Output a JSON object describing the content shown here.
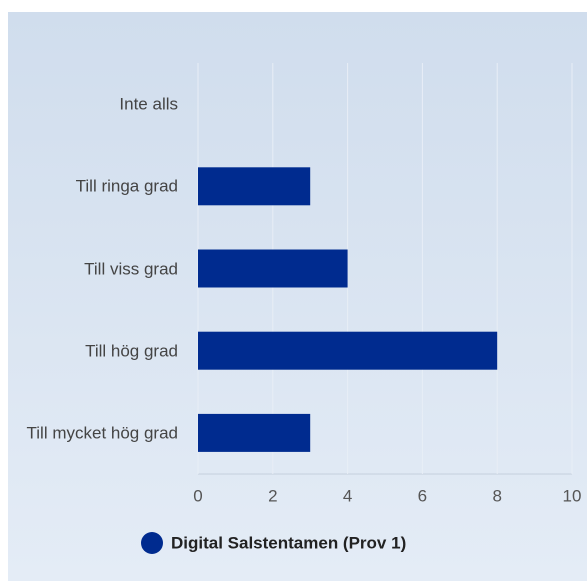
{
  "chart_data": {
    "type": "bar",
    "orientation": "horizontal",
    "categories": [
      "Inte alls",
      "Till ringa grad",
      "Till viss grad",
      "Till hög grad",
      "Till mycket hög grad"
    ],
    "series": [
      {
        "name": "Digital Salstentamen (Prov 1)",
        "color": "#002b8f",
        "values": [
          0,
          3,
          4,
          8,
          3
        ]
      }
    ],
    "xlim": [
      0,
      10
    ],
    "xticks": [
      0,
      2,
      4,
      6,
      8,
      10
    ],
    "grid": true,
    "legend": "bottom"
  }
}
